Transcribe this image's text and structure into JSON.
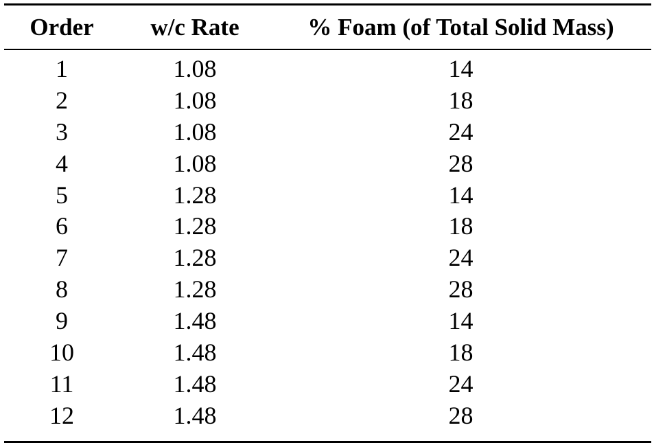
{
  "table": {
    "headers": [
      "Order",
      "w/c Rate",
      "% Foam (of Total Solid Mass)"
    ],
    "rows": [
      [
        "1",
        "1.08",
        "14"
      ],
      [
        "2",
        "1.08",
        "18"
      ],
      [
        "3",
        "1.08",
        "24"
      ],
      [
        "4",
        "1.08",
        "28"
      ],
      [
        "5",
        "1.28",
        "14"
      ],
      [
        "6",
        "1.28",
        "18"
      ],
      [
        "7",
        "1.28",
        "24"
      ],
      [
        "8",
        "1.28",
        "28"
      ],
      [
        "9",
        "1.48",
        "14"
      ],
      [
        "10",
        "1.48",
        "18"
      ],
      [
        "11",
        "1.48",
        "24"
      ],
      [
        "12",
        "1.48",
        "28"
      ]
    ]
  }
}
